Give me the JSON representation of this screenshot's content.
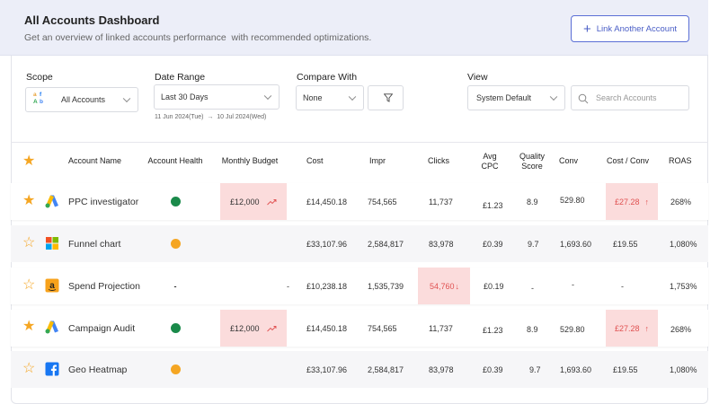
{
  "header": {
    "title": "All Accounts Dashboard",
    "subtitle": "Get an overview of linked accounts performance  with recommended optimizations.",
    "link_button": "Link Another Account"
  },
  "filters": {
    "scope_label": "Scope",
    "scope_value": "All Accounts",
    "date_label": "Date Range",
    "date_value": "Last 30 Days",
    "date_sub": "11 Jun 2024(Tue)  →  10 Jul 2024(Wed)",
    "compare_label": "Compare With",
    "compare_value": "None",
    "view_label": "View",
    "view_value": "System Default",
    "search_placeholder": "Search Accounts"
  },
  "table": {
    "columns": {
      "name": "Account Name",
      "health": "Account Health",
      "budget": "Monthly Budget",
      "cost": "Cost",
      "impr": "Impr",
      "clicks": "Clicks",
      "avg_cpc_1": "Avg",
      "avg_cpc_2": "CPC",
      "quality_1": "Quality",
      "quality_2": "Score",
      "conv": "Conv",
      "cost_conv": "Cost / Conv",
      "roas": "ROAS"
    },
    "rows": [
      {
        "favorite": true,
        "platform": "google-ads-icon",
        "name": "PPC investigator",
        "health": "#1a8a4a",
        "budget": "£12,000",
        "cost": "£14,450.18",
        "impr": "754,565",
        "clicks": "11,737",
        "avg_cpc": "£1.23",
        "quality": "8.9",
        "conv": "529.80",
        "cost_conv": "£27.28",
        "roas": "268%"
      },
      {
        "favorite": false,
        "platform": "microsoft-ads-icon",
        "name": "Funnel chart",
        "health": "#f5a623",
        "budget": "",
        "cost": "£33,107.96",
        "impr": "2,584,817",
        "clicks": "83,978",
        "avg_cpc": "£0.39",
        "quality": "9.7",
        "conv": "1,693.60",
        "cost_conv": "£19.55",
        "roas": "1,080%"
      },
      {
        "favorite": false,
        "platform": "amazon-ads-icon",
        "name": "Spend Projection",
        "health": "-",
        "budget": "-",
        "cost": "£10,238.18",
        "impr": "1,535,739",
        "clicks": "54,760",
        "avg_cpc": "£0.19",
        "quality": "-",
        "conv": "-",
        "cost_conv": "-",
        "roas": "1,753%"
      },
      {
        "favorite": true,
        "platform": "google-ads-icon",
        "name": "Campaign Audit",
        "health": "#1a8a4a",
        "budget": "£12,000",
        "cost": "£14,450.18",
        "impr": "754,565",
        "clicks": "11,737",
        "avg_cpc": "£1.23",
        "quality": "8.9",
        "conv": "529.80",
        "cost_conv": "£27.28",
        "roas": "268%"
      },
      {
        "favorite": false,
        "platform": "facebook-icon",
        "name": "Geo Heatmap",
        "health": "#f5a623",
        "budget": "",
        "cost": "£33,107.96",
        "impr": "2,584,817",
        "clicks": "83,978",
        "avg_cpc": "£0.39",
        "quality": "9.7",
        "conv": "1,693.60",
        "cost_conv": "£19.55",
        "roas": "1,080%"
      }
    ]
  },
  "colors": {
    "accent": "#5b6fd6",
    "star": "#f5a623",
    "health_good": "#1a8a4a",
    "health_warn": "#f5a623",
    "highlight": "#fbdcdc",
    "alert_text": "#e05252"
  }
}
